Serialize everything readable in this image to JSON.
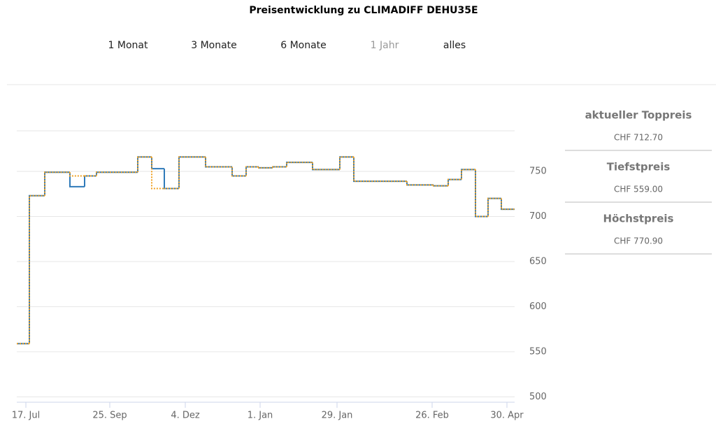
{
  "title": "Preisentwicklung zu CLIMADIFF DEHU35E",
  "ranges": [
    "1 Monat",
    "3 Monate",
    "6 Monate",
    "1 Jahr",
    "alles"
  ],
  "selected_range": 3,
  "stats": [
    {
      "label": "aktueller Toppreis",
      "value": "CHF 712.70"
    },
    {
      "label": "Tiefstpreis",
      "value": "CHF 559.00"
    },
    {
      "label": "Höchstpreis",
      "value": "CHF 770.90"
    }
  ],
  "chart_data": {
    "type": "step",
    "x": [
      0,
      18,
      40,
      76,
      97,
      114,
      173,
      193,
      211,
      232,
      270,
      308,
      328,
      346,
      366,
      386,
      423,
      462,
      482,
      558,
      596,
      617,
      636,
      656,
      674,
      693
    ],
    "series": [
      {
        "name": "blue",
        "color": "#2f7ab9",
        "dash": false,
        "values": [
          559,
          723,
          749,
          733,
          745,
          749,
          766,
          753,
          731,
          766,
          755,
          745,
          755,
          754,
          755,
          760,
          752,
          766,
          739,
          735,
          734,
          741,
          752,
          700,
          720,
          708
        ]
      },
      {
        "name": "orange",
        "color": "#f0a020",
        "dash": true,
        "values": [
          559,
          723,
          749,
          745,
          745,
          749,
          766,
          731,
          731,
          766,
          755,
          745,
          755,
          754,
          755,
          760,
          752,
          766,
          739,
          735,
          734,
          741,
          752,
          700,
          720,
          708
        ]
      }
    ],
    "xlim": [
      0,
      712
    ],
    "xticks": [
      {
        "value": 13,
        "label": "17. Jul"
      },
      {
        "value": 133,
        "label": "25. Sep"
      },
      {
        "value": 241,
        "label": "4. Dez"
      },
      {
        "value": 348,
        "label": "1. Jan"
      },
      {
        "value": 458,
        "label": "29. Jan"
      },
      {
        "value": 594,
        "label": "26. Feb"
      },
      {
        "value": 701,
        "label": "30. Apr"
      }
    ],
    "ylim": [
      494,
      795
    ],
    "yticks": [
      500,
      550,
      600,
      650,
      700,
      750
    ],
    "grid": true
  }
}
